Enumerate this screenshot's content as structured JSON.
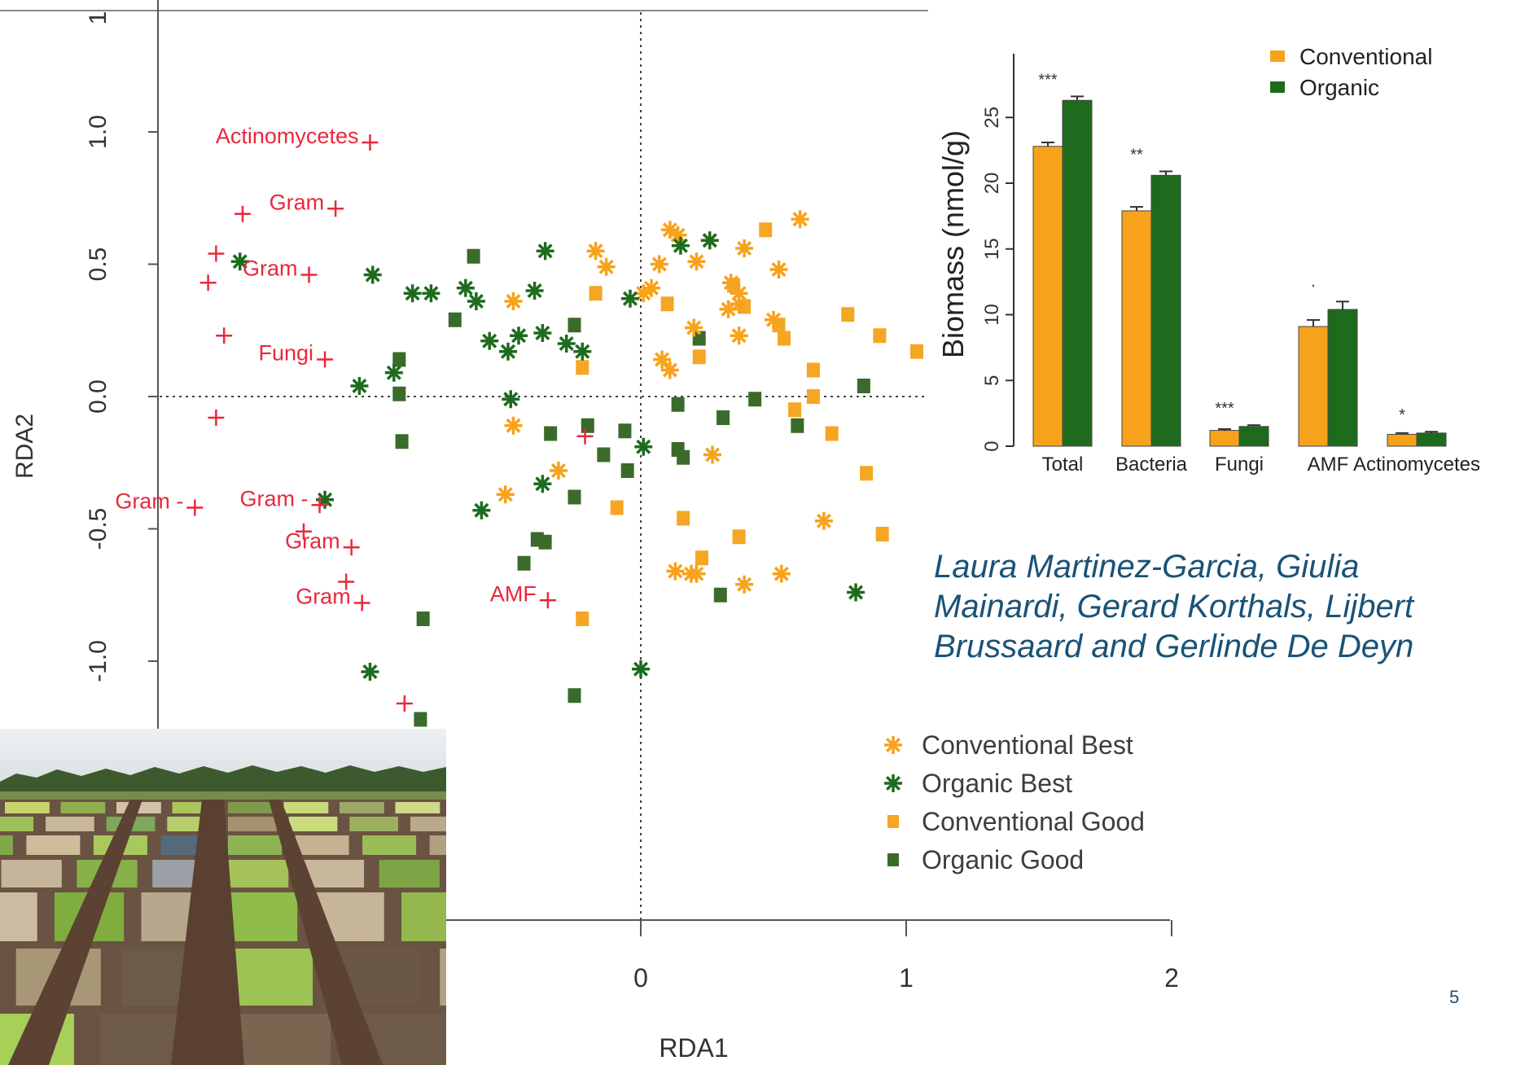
{
  "slide": {
    "authors": "Laura Martinez-Garcia, Giulia\nMainardi, Gerard Korthals, Lijbert\nBrussaard and Gerlinde De Deyn",
    "page_number": "5"
  },
  "icons": {
    "field_photo": "experimental-field-plots-photo"
  },
  "colors": {
    "conventional": "#f7a21b",
    "organic": "#1e6b1e",
    "conventional_good": "#f5a623",
    "organic_good": "#3a6b2a",
    "response": "#e8283c",
    "annotation": "#3d3d3d",
    "author_text": "#1a5276"
  },
  "chart_data": [
    {
      "type": "bar",
      "ylabel": "Biomass (nmol/g)",
      "categories": [
        "Total",
        "Bacteria",
        "Fungi",
        "AMF",
        "Actinomycetes"
      ],
      "yticks": [
        "0",
        "5",
        "10",
        "15",
        "20",
        "25"
      ],
      "ylim": [
        0,
        28
      ],
      "series": [
        {
          "name": "Conventional",
          "values": [
            22.8,
            17.9,
            1.2,
            9.1,
            0.9
          ],
          "errors": [
            0.3,
            0.3,
            0.1,
            0.5,
            0.1
          ]
        },
        {
          "name": "Organic",
          "values": [
            26.3,
            20.6,
            1.5,
            10.4,
            1.0
          ],
          "errors": [
            0.3,
            0.3,
            0.1,
            0.6,
            0.1
          ]
        }
      ],
      "significance": [
        "***",
        "**",
        "***",
        "·",
        "*"
      ],
      "legend": "top-right"
    },
    {
      "type": "scatter",
      "xlabel": "RDA1",
      "ylabel": "RDA2",
      "xlim": [
        -2.3,
        2.2
      ],
      "ylim": [
        -1.45,
        1.5
      ],
      "xticks": [
        "0",
        "1",
        "2"
      ],
      "yticks": [
        "-1.0",
        "-0.5",
        "0.0",
        "0.5",
        "1.0",
        "1"
      ],
      "legend_labels": [
        "Conventional Best",
        "Organic Best",
        "Conventional Good",
        "Organic Good"
      ],
      "grid": false,
      "response_vectors": [
        {
          "label": "Actinomycetes",
          "x": -1.02,
          "y": 0.96
        },
        {
          "label": "Gram",
          "x": -1.15,
          "y": 0.71
        },
        {
          "label": "",
          "x": -1.5,
          "y": 0.69
        },
        {
          "label": "Gram",
          "x": -1.25,
          "y": 0.46
        },
        {
          "label": "",
          "x": -1.6,
          "y": 0.54
        },
        {
          "label": "",
          "x": -1.63,
          "y": 0.43
        },
        {
          "label": "",
          "x": -1.57,
          "y": 0.23
        },
        {
          "label": "Fungi",
          "x": -1.19,
          "y": 0.14
        },
        {
          "label": "",
          "x": -1.6,
          "y": -0.08
        },
        {
          "label": "Gram -",
          "x": -1.68,
          "y": -0.42
        },
        {
          "label": "Gram -",
          "x": -1.21,
          "y": -0.41
        },
        {
          "label": "",
          "x": -1.27,
          "y": -0.51
        },
        {
          "label": "Gram",
          "x": -1.09,
          "y": -0.57
        },
        {
          "label": "",
          "x": -1.11,
          "y": -0.7
        },
        {
          "label": "Gram",
          "x": -1.05,
          "y": -0.78
        },
        {
          "label": "AMF",
          "x": -0.35,
          "y": -0.77
        },
        {
          "label": "",
          "x": -0.21,
          "y": -0.15
        },
        {
          "label": "",
          "x": -0.89,
          "y": -1.16
        }
      ],
      "conventional_best": [
        [
          0.11,
          0.63
        ],
        [
          0.6,
          0.67
        ],
        [
          0.14,
          0.61
        ],
        [
          0.26,
          0.59
        ],
        [
          -0.17,
          0.55
        ],
        [
          0.39,
          0.56
        ],
        [
          0.21,
          0.51
        ],
        [
          -0.13,
          0.49
        ],
        [
          0.07,
          0.5
        ],
        [
          0.52,
          0.48
        ],
        [
          0.04,
          0.41
        ],
        [
          0.34,
          0.43
        ],
        [
          0.37,
          0.39
        ],
        [
          0.01,
          0.39
        ],
        [
          -0.48,
          0.36
        ],
        [
          0.33,
          0.33
        ],
        [
          0.37,
          0.35
        ],
        [
          0.5,
          0.29
        ],
        [
          0.37,
          0.23
        ],
        [
          0.2,
          0.26
        ],
        [
          0.08,
          0.14
        ],
        [
          0.11,
          0.1
        ],
        [
          -0.48,
          -0.11
        ],
        [
          0.27,
          -0.22
        ],
        [
          -0.31,
          -0.28
        ],
        [
          -0.51,
          -0.37
        ],
        [
          0.69,
          -0.47
        ],
        [
          0.13,
          -0.66
        ],
        [
          0.19,
          -0.67
        ],
        [
          0.21,
          -0.67
        ],
        [
          0.39,
          -0.71
        ],
        [
          0.53,
          -0.67
        ]
      ],
      "organic_best": [
        [
          0.15,
          0.57
        ],
        [
          0.26,
          0.59
        ],
        [
          -1.51,
          0.51
        ],
        [
          -1.01,
          0.46
        ],
        [
          -0.36,
          0.55
        ],
        [
          -0.4,
          0.4
        ],
        [
          -0.86,
          0.39
        ],
        [
          -0.79,
          0.39
        ],
        [
          -0.66,
          0.41
        ],
        [
          -0.62,
          0.36
        ],
        [
          -0.57,
          0.21
        ],
        [
          -0.5,
          0.17
        ],
        [
          -0.46,
          0.23
        ],
        [
          -0.37,
          0.24
        ],
        [
          -0.28,
          0.2
        ],
        [
          -0.22,
          0.17
        ],
        [
          -0.04,
          0.37
        ],
        [
          -1.06,
          0.04
        ],
        [
          -0.93,
          0.09
        ],
        [
          -0.49,
          -0.01
        ],
        [
          0.01,
          -0.19
        ],
        [
          -0.37,
          -0.33
        ],
        [
          -0.6,
          -0.43
        ],
        [
          -1.19,
          -0.39
        ],
        [
          -1.02,
          -1.04
        ],
        [
          0.0,
          -1.03
        ],
        [
          0.81,
          -0.74
        ]
      ],
      "conventional_good": [
        [
          0.47,
          0.63
        ],
        [
          -0.17,
          0.39
        ],
        [
          0.1,
          0.35
        ],
        [
          0.35,
          0.42
        ],
        [
          0.39,
          0.34
        ],
        [
          0.52,
          0.27
        ],
        [
          0.54,
          0.22
        ],
        [
          0.78,
          0.31
        ],
        [
          0.9,
          0.23
        ],
        [
          1.04,
          0.17
        ],
        [
          0.22,
          0.15
        ],
        [
          0.65,
          0.1
        ],
        [
          0.65,
          0.0
        ],
        [
          0.58,
          -0.05
        ],
        [
          -0.22,
          0.11
        ],
        [
          0.72,
          -0.14
        ],
        [
          0.85,
          -0.29
        ],
        [
          0.91,
          -0.52
        ],
        [
          0.16,
          -0.46
        ],
        [
          0.37,
          -0.53
        ],
        [
          0.23,
          -0.61
        ],
        [
          -0.09,
          -0.42
        ],
        [
          -0.22,
          -0.84
        ]
      ],
      "organic_good": [
        [
          -0.63,
          0.53
        ],
        [
          -0.7,
          0.29
        ],
        [
          -0.25,
          0.27
        ],
        [
          0.22,
          0.22
        ],
        [
          -0.91,
          0.14
        ],
        [
          -0.91,
          0.01
        ],
        [
          0.43,
          -0.01
        ],
        [
          0.84,
          0.04
        ],
        [
          0.14,
          -0.03
        ],
        [
          0.59,
          -0.11
        ],
        [
          0.31,
          -0.08
        ],
        [
          -0.2,
          -0.11
        ],
        [
          -0.34,
          -0.14
        ],
        [
          -0.06,
          -0.13
        ],
        [
          -0.9,
          -0.17
        ],
        [
          -0.14,
          -0.22
        ],
        [
          -0.05,
          -0.28
        ],
        [
          0.14,
          -0.2
        ],
        [
          0.16,
          -0.23
        ],
        [
          -0.25,
          -0.38
        ],
        [
          -0.39,
          -0.54
        ],
        [
          -0.36,
          -0.55
        ],
        [
          -0.44,
          -0.63
        ],
        [
          -0.82,
          -0.84
        ],
        [
          0.3,
          -0.75
        ],
        [
          -0.25,
          -1.13
        ],
        [
          -0.83,
          -1.22
        ]
      ]
    }
  ]
}
